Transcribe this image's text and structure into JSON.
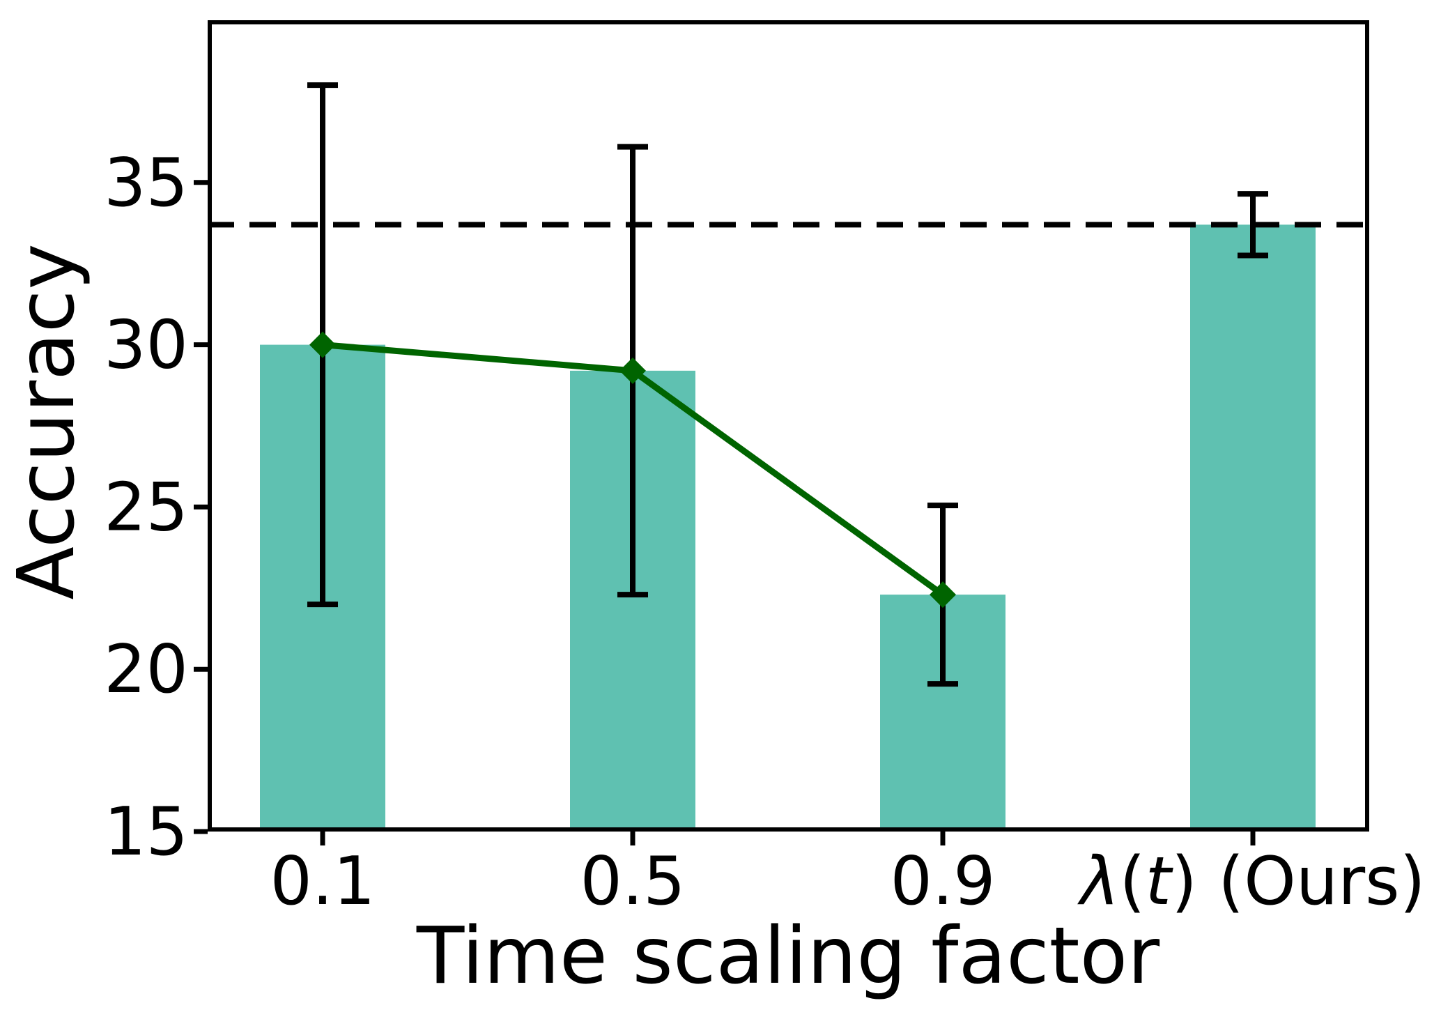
{
  "figure": {
    "xlabel": "Time scaling factor",
    "ylabel": "Accuracy"
  },
  "chart_data": {
    "type": "bar",
    "title": "",
    "xlabel": "Time scaling factor",
    "ylabel": "Accuracy",
    "categories": [
      "0.1",
      "0.5",
      "0.9",
      "λ(t) (Ours)"
    ],
    "values": [
      30.0,
      29.2,
      22.3,
      33.7
    ],
    "error_bars": [
      8.0,
      6.9,
      2.75,
      0.95
    ],
    "bar_color": "#5fc1b1",
    "error_color": "#000000",
    "line_overlay": {
      "comment_categories": [
        "0.1",
        "0.5",
        "0.9"
      ],
      "values": [
        30.0,
        29.2,
        22.3
      ],
      "marker": "diamond",
      "color": "#006400"
    },
    "baseline": {
      "value": 33.7,
      "style": "dashed",
      "color": "#000000"
    },
    "yticks": [
      15,
      20,
      25,
      30,
      35
    ],
    "ylim": [
      15,
      40
    ],
    "grid": false,
    "legend_position": "none"
  }
}
